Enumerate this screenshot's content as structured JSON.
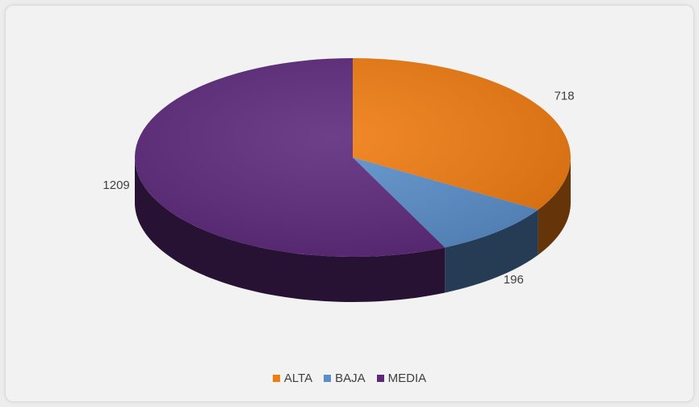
{
  "chart_data": {
    "type": "pie",
    "categories": [
      "ALTA",
      "BAJA",
      "MEDIA"
    ],
    "values": [
      718,
      196,
      1209
    ],
    "colors": [
      "#f07c12",
      "#5b8fca",
      "#5e2a7c"
    ],
    "data_labels": [
      "718",
      "196",
      "1209"
    ],
    "legend_position": "bottom",
    "style": "3d-pie"
  }
}
